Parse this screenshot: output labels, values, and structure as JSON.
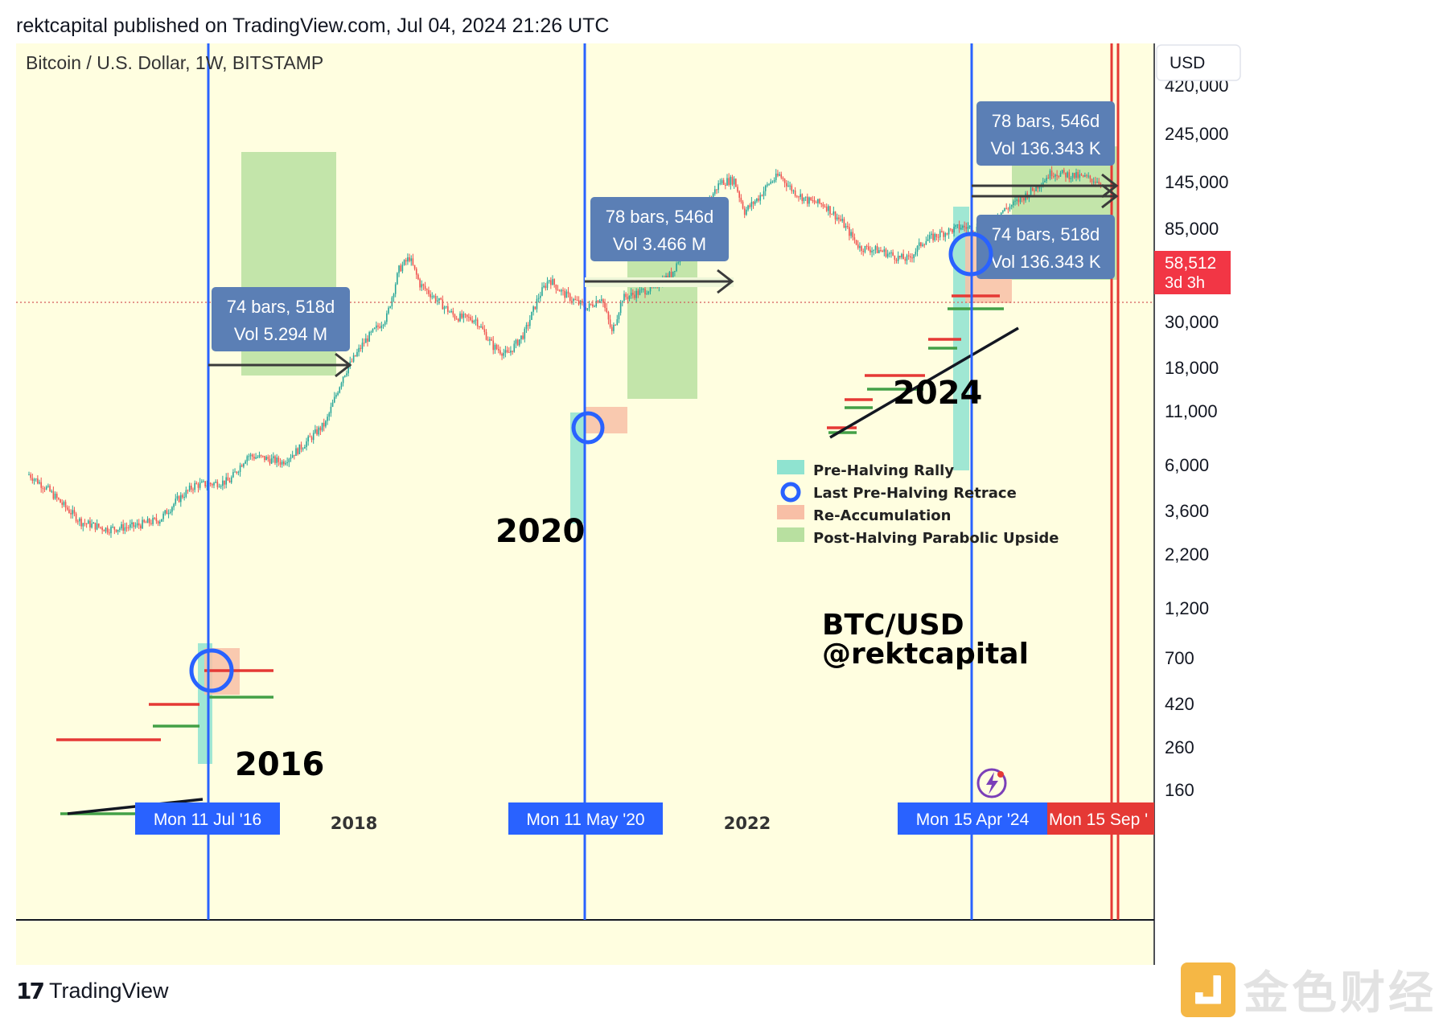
{
  "header": {
    "published_line": "rektcapital published on TradingView.com, Jul 04, 2024 21:26 UTC"
  },
  "footer": {
    "brand": "TradingView",
    "watermark": "金色财经"
  },
  "colors": {
    "background": "#fffee0",
    "candle_up": "#26a69a",
    "candle_down": "#ef5350",
    "halving_line": "#2962ff",
    "end_line": "#e53935",
    "pre_halving_rally": "#8fe3d0",
    "re_accumulation": "#f8bfa6",
    "post_halving_upside": "#b8e0a0",
    "label_box": "#5b7fb5",
    "price_tag": "#f23645"
  },
  "chart_data": {
    "type": "candlestick",
    "title": "Bitcoin / U.S. Dollar, 1W, BITSTAMP",
    "y_scale": "log",
    "currency_button": "USD",
    "y_ticks": [
      "160",
      "260",
      "420",
      "700",
      "1,200",
      "2,200",
      "3,600",
      "6,000",
      "11,000",
      "18,000",
      "30,000",
      "58,512",
      "85,000",
      "145,000",
      "245,000",
      "420,000"
    ],
    "last_price": {
      "value": "58,512",
      "countdown": "3d 3h"
    },
    "x_ticks": [
      "2018",
      "2022"
    ],
    "halving_dates": [
      "Mon 11 Jul '16",
      "Mon 11 May '20",
      "Mon 15 Apr '24"
    ],
    "projection_date": "Mon 15 Sep '",
    "cycle_labels": [
      "2016",
      "2020",
      "2024"
    ],
    "measurements": [
      {
        "bars": "74 bars, 518d",
        "vol": "Vol 5.294 M"
      },
      {
        "bars": "78 bars, 546d",
        "vol": "Vol 3.466 M"
      },
      {
        "bars": "78 bars, 546d",
        "vol": "Vol 136.343 K"
      },
      {
        "bars": "74 bars, 518d",
        "vol": "Vol 136.343 K"
      }
    ],
    "legend": [
      {
        "label": "Pre-Halving Rally",
        "swatch": "#8fe3d0"
      },
      {
        "label": "Last Pre-Halving Retrace",
        "swatch": "circle"
      },
      {
        "label": "Re-Accumulation",
        "swatch": "#f8bfa6"
      },
      {
        "label": "Post-Halving Parabolic Upside",
        "swatch": "#b8e0a0"
      }
    ],
    "annotation": [
      "BTC/USD",
      "@rektcapital"
    ],
    "price_path": [
      [
        0,
        500
      ],
      [
        10,
        400
      ],
      [
        20,
        300
      ],
      [
        30,
        230
      ],
      [
        45,
        205
      ],
      [
        60,
        215
      ],
      [
        75,
        240
      ],
      [
        85,
        330
      ],
      [
        95,
        420
      ],
      [
        105,
        430
      ],
      [
        115,
        450
      ],
      [
        125,
        680
      ],
      [
        135,
        650
      ],
      [
        145,
        610
      ],
      [
        155,
        760
      ],
      [
        170,
        1150
      ],
      [
        180,
        2500
      ],
      [
        192,
        4300
      ],
      [
        205,
        6500
      ],
      [
        212,
        14000
      ],
      [
        218,
        17000
      ],
      [
        224,
        11000
      ],
      [
        234,
        8500
      ],
      [
        244,
        6500
      ],
      [
        256,
        6200
      ],
      [
        266,
        4000
      ],
      [
        274,
        3500
      ],
      [
        284,
        5000
      ],
      [
        292,
        9000
      ],
      [
        298,
        12000
      ],
      [
        306,
        9500
      ],
      [
        314,
        8200
      ],
      [
        320,
        7500
      ],
      [
        328,
        9000
      ],
      [
        334,
        5000
      ],
      [
        340,
        8800
      ],
      [
        348,
        9500
      ],
      [
        358,
        10500
      ],
      [
        368,
        13000
      ],
      [
        378,
        23000
      ],
      [
        388,
        40000
      ],
      [
        396,
        58000
      ],
      [
        404,
        60000
      ],
      [
        410,
        36000
      ],
      [
        418,
        45000
      ],
      [
        424,
        57000
      ],
      [
        430,
        65000
      ],
      [
        438,
        50000
      ],
      [
        446,
        43000
      ],
      [
        456,
        40000
      ],
      [
        466,
        30000
      ],
      [
        476,
        20000
      ],
      [
        488,
        19000
      ],
      [
        498,
        17000
      ],
      [
        504,
        16500
      ],
      [
        512,
        22000
      ],
      [
        522,
        25000
      ],
      [
        534,
        28000
      ],
      [
        546,
        27000
      ],
      [
        556,
        35000
      ],
      [
        566,
        42000
      ],
      [
        576,
        52000
      ],
      [
        586,
        68000
      ],
      [
        596,
        65000
      ],
      [
        606,
        62000
      ],
      [
        614,
        58512
      ]
    ]
  }
}
